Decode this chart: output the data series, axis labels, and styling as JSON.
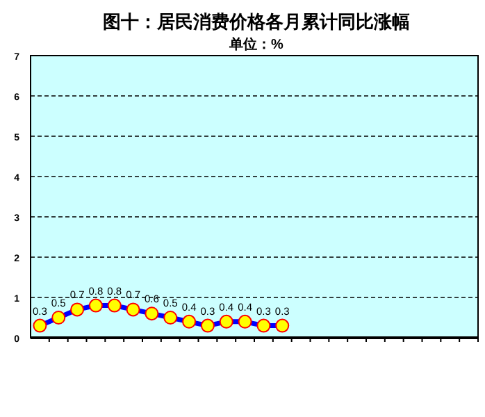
{
  "chart_data": {
    "type": "line",
    "title": "图十：居民消费价格各月累计同比涨幅",
    "subtitle": "单位：%",
    "categories": [
      null,
      null,
      null,
      null,
      null,
      null,
      null,
      null,
      null,
      null,
      null,
      null,
      null,
      null,
      null,
      null,
      null,
      null,
      null,
      null,
      null,
      null,
      null,
      null
    ],
    "series": [
      {
        "color": "#0000ff",
        "values": [
          0.3,
          0.5,
          0.7,
          0.8,
          0.8,
          0.7,
          0.6,
          0.5,
          0.4,
          0.3,
          0.4,
          0.4,
          0.3,
          0.3,
          null,
          null,
          null,
          null,
          null,
          null,
          null,
          null,
          null,
          null
        ]
      }
    ],
    "ylim": [
      0,
      7
    ],
    "yticks": [
      0,
      1,
      2,
      3,
      4,
      5,
      6,
      7
    ],
    "grid": "y",
    "marker": "circle",
    "line_style": "solid",
    "data_labels": true
  }
}
